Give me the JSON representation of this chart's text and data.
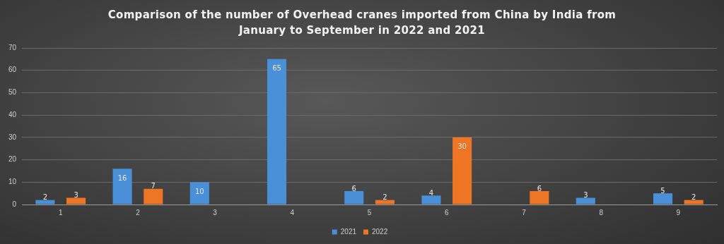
{
  "chart_data": {
    "type": "bar",
    "title": "Comparison of the number of Overhead cranes imported from China by India from January to September in 2022 and 2021",
    "categories": [
      "1",
      "2",
      "3",
      "4",
      "5",
      "6",
      "7",
      "8",
      "9"
    ],
    "series": [
      {
        "name": "2021",
        "color": "#4a90d9",
        "values": [
          2,
          16,
          10,
          65,
          6,
          4,
          null,
          3,
          5
        ]
      },
      {
        "name": "2022",
        "color": "#ed7523",
        "values": [
          3,
          7,
          null,
          null,
          2,
          30,
          6,
          null,
          2
        ]
      }
    ],
    "ylim": [
      0,
      70
    ],
    "yticks": [
      0,
      10,
      20,
      30,
      40,
      50,
      60,
      70
    ],
    "grid": "y",
    "legend": "bottom",
    "data_labels": true
  }
}
